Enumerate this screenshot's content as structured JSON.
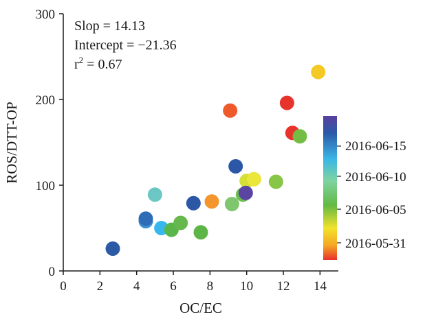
{
  "chart_data": {
    "type": "scatter",
    "title": "",
    "xlabel": "OC/EC",
    "ylabel": "ROS/DTT-OP",
    "xlim": [
      0,
      15
    ],
    "ylim": [
      0,
      300
    ],
    "x_ticks": [
      0,
      2,
      4,
      6,
      8,
      10,
      12,
      14
    ],
    "y_ticks": [
      0,
      100,
      200,
      300
    ],
    "x_tick_labels": [
      "0",
      "2",
      "4",
      "6",
      "8",
      "10",
      "12",
      "14"
    ],
    "y_tick_labels": [
      "0",
      "100",
      "200",
      "300"
    ],
    "grid": false,
    "annotations": {
      "slope": "Slop = 14.13",
      "intercept": "Intercept = −21.36",
      "r2_base": "r",
      "r2_sup": "2",
      "r2_rest": " = 0.67"
    },
    "colorbar": {
      "position": "right",
      "labels": [
        "2016-06-15",
        "2016-06-10",
        "2016-06-05",
        "2016-05-31"
      ],
      "colors_bottom_to_top": [
        "#e8312b",
        "#f5a623",
        "#f3e32c",
        "#62b944",
        "#7ed3a0",
        "#3bb7e6",
        "#2b5aa8",
        "#5b3f9e"
      ]
    },
    "points": [
      {
        "x": 2.7,
        "y": 26,
        "color": "#2c5aa5"
      },
      {
        "x": 4.5,
        "y": 58,
        "color": "#3c8fd0"
      },
      {
        "x": 4.5,
        "y": 61,
        "color": "#2f6cb8"
      },
      {
        "x": 5.0,
        "y": 89,
        "color": "#6cc7c4"
      },
      {
        "x": 5.35,
        "y": 50,
        "color": "#36b8ec"
      },
      {
        "x": 5.9,
        "y": 48,
        "color": "#59b64a"
      },
      {
        "x": 6.4,
        "y": 56,
        "color": "#66b74c"
      },
      {
        "x": 7.1,
        "y": 79,
        "color": "#2b57a5"
      },
      {
        "x": 7.5,
        "y": 45,
        "color": "#5cb546"
      },
      {
        "x": 8.1,
        "y": 81,
        "color": "#f3962d"
      },
      {
        "x": 9.1,
        "y": 187,
        "color": "#ef5a2b"
      },
      {
        "x": 9.2,
        "y": 78,
        "color": "#7fc66f"
      },
      {
        "x": 9.4,
        "y": 122,
        "color": "#2c57a6"
      },
      {
        "x": 9.8,
        "y": 89,
        "color": "#6cbf4f"
      },
      {
        "x": 10.0,
        "y": 105,
        "color": "#d5df35"
      },
      {
        "x": 9.95,
        "y": 91,
        "color": "#5a45a3"
      },
      {
        "x": 10.4,
        "y": 107,
        "color": "#eae63a"
      },
      {
        "x": 11.6,
        "y": 104,
        "color": "#88c647"
      },
      {
        "x": 12.2,
        "y": 196,
        "color": "#e6342c"
      },
      {
        "x": 12.5,
        "y": 161,
        "color": "#e8322c"
      },
      {
        "x": 12.9,
        "y": 157,
        "color": "#74bd44"
      },
      {
        "x": 13.9,
        "y": 232,
        "color": "#f5c925"
      }
    ]
  }
}
